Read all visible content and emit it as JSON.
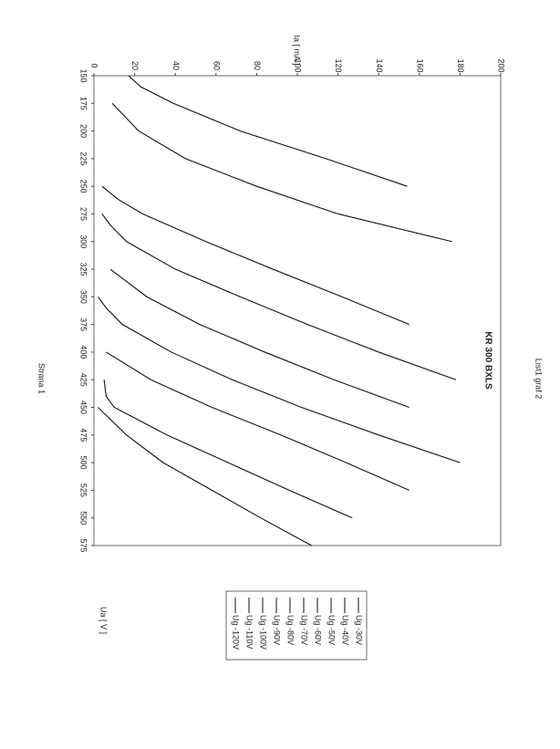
{
  "page_header": "List1 graf 2",
  "page_footer": "Strana 1",
  "chart_data": {
    "type": "line",
    "title": "KR 300 BXLS",
    "x_label": "Ua [ V ]",
    "y_label": "Ia [ mA ]",
    "xlim": [
      150,
      575
    ],
    "ylim": [
      0,
      200
    ],
    "xticks": [
      150,
      175,
      200,
      225,
      250,
      275,
      300,
      325,
      350,
      375,
      400,
      425,
      450,
      475,
      500,
      525,
      550,
      575
    ],
    "yticks": [
      0,
      20,
      40,
      60,
      80,
      100,
      120,
      140,
      160,
      180,
      200
    ],
    "color": "#111",
    "series": [
      {
        "name": "Ug -30V",
        "x": [
          150,
          160,
          175,
          200,
          225,
          250
        ],
        "values": [
          17,
          23,
          39,
          72,
          114,
          154
        ]
      },
      {
        "name": "Ug -40V",
        "x": [
          175,
          200,
          225,
          250,
          275,
          300
        ],
        "values": [
          9,
          22,
          45,
          80,
          120,
          176
        ]
      },
      {
        "name": "Ug -50V",
        "x": [
          250,
          262,
          275,
          300,
          325,
          350,
          375
        ],
        "values": [
          4,
          12,
          24,
          55,
          88,
          122,
          155
        ]
      },
      {
        "name": "Ug -60V",
        "x": [
          275,
          285,
          300,
          325,
          350,
          375,
          400,
          425
        ],
        "values": [
          4,
          8,
          16,
          40,
          72,
          105,
          140,
          178
        ]
      },
      {
        "name": "Ug -70V",
        "x": [
          325,
          350,
          375,
          400,
          425,
          450
        ],
        "values": [
          8,
          26,
          52,
          84,
          118,
          155
        ]
      },
      {
        "name": "Ug -80V",
        "x": [
          350,
          360,
          375,
          400,
          425,
          450,
          475,
          500
        ],
        "values": [
          2,
          6,
          14,
          38,
          68,
          102,
          140,
          180
        ]
      },
      {
        "name": "Ug -90V",
        "x": [
          400,
          425,
          450,
          475,
          500,
          525
        ],
        "values": [
          6,
          28,
          58,
          92,
          124,
          155
        ]
      },
      {
        "name": "Ug -100V",
        "x": [
          425,
          440,
          450,
          475,
          500,
          525,
          550
        ],
        "values": [
          5,
          6,
          10,
          36,
          66,
          96,
          127
        ]
      },
      {
        "name": "Ug -110V",
        "x": [
          450,
          475,
          500,
          525,
          550,
          575
        ],
        "values": [
          2,
          16,
          34,
          58,
          82,
          107
        ]
      },
      {
        "name": "Ug -120V",
        "x": [],
        "values": []
      }
    ]
  }
}
